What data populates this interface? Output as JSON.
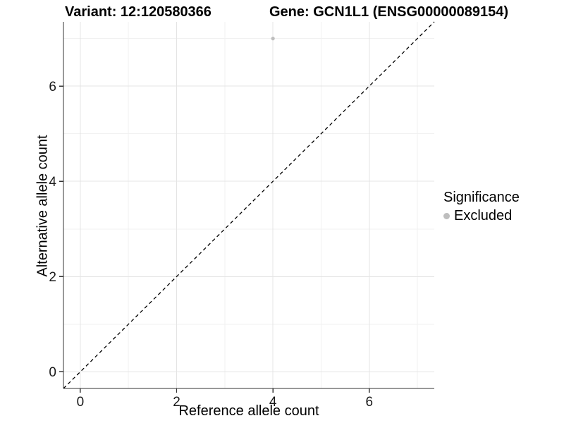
{
  "title": {
    "left": "Variant: 12:120580366",
    "right": "Gene: GCN1L1 (ENSG00000089154)"
  },
  "chart_data": {
    "type": "scatter",
    "title": "Variant: 12:120580366   Gene: GCN1L1 (ENSG00000089154)",
    "xlabel": "Reference allele count",
    "ylabel": "Alternative allele count",
    "xlim": [
      -0.35,
      7.35
    ],
    "ylim": [
      -0.35,
      7.35
    ],
    "xticks": [
      0,
      2,
      4,
      6
    ],
    "yticks": [
      0,
      2,
      4,
      6
    ],
    "x_minor": [
      1,
      3,
      5,
      7
    ],
    "y_minor": [
      1,
      3,
      5,
      7
    ],
    "grid": true,
    "identity_line": {
      "style": "dashed",
      "slope": 1,
      "intercept": 0,
      "color": "#000000"
    },
    "series": [
      {
        "name": "Excluded",
        "color": "#bebebe",
        "points": [
          {
            "x": 4,
            "y": 7
          }
        ]
      }
    ],
    "legend": {
      "position": "right",
      "title": "Significance",
      "entries": [
        {
          "label": "Excluded",
          "color": "#bebebe"
        }
      ]
    },
    "colors": {
      "background": "#ffffff",
      "grid_major": "#e4e4e4",
      "grid_minor": "#f1f1f1",
      "axis": "#333333",
      "tick_text": "#1a1a1a"
    }
  }
}
